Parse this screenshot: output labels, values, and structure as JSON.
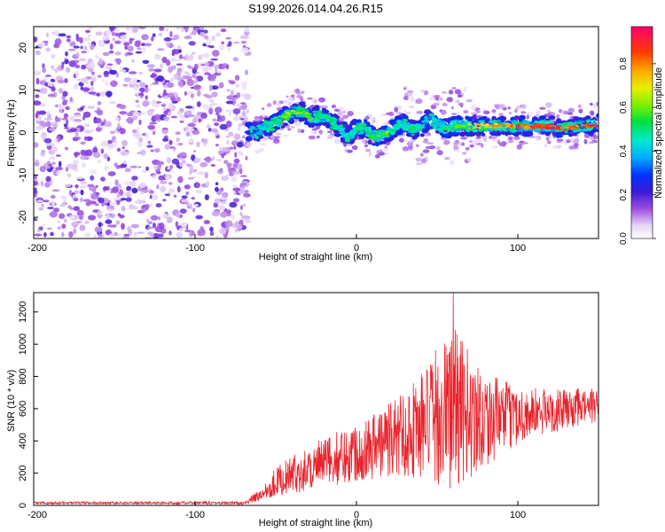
{
  "figure": {
    "title": "S199.2026.014.04.26.R15"
  },
  "chart_data": [
    {
      "type": "heatmap",
      "panel": "spectrogram",
      "title": "S199.2026.014.04.26.R15",
      "xlabel": "Height of straight line (km)",
      "ylabel": "Frequency (Hz)",
      "xlim": [
        -200,
        150
      ],
      "ylim": [
        -25,
        25
      ],
      "xticks": [
        -200,
        -100,
        0,
        100
      ],
      "xtick_labels": [
        "-200",
        "-100",
        "0",
        "100"
      ],
      "yticks": [
        -20,
        -10,
        0,
        10,
        20
      ],
      "ytick_labels": [
        "-20",
        "-10",
        "0",
        "10",
        "20"
      ],
      "colorbar": {
        "label": "Normalized spectral amplitude",
        "range": [
          0,
          0.97
        ],
        "ticks": [
          0,
          0.2,
          0.4,
          0.6,
          0.8
        ],
        "tick_labels": [
          "0.0",
          "0.2",
          "0.4",
          "0.6",
          "0.8"
        ]
      },
      "noise_region_x": [
        -200,
        -70
      ],
      "signal_ridge": [
        {
          "x": -70,
          "y": 0.5,
          "a": 0.35
        },
        {
          "x": -62,
          "y": 0.0,
          "a": 0.35
        },
        {
          "x": -55,
          "y": 1.5,
          "a": 0.45
        },
        {
          "x": -48,
          "y": 2.5,
          "a": 0.55
        },
        {
          "x": -42,
          "y": 4.5,
          "a": 0.65
        },
        {
          "x": -35,
          "y": 5.0,
          "a": 0.6
        },
        {
          "x": -28,
          "y": 3.5,
          "a": 0.55
        },
        {
          "x": -22,
          "y": 4.0,
          "a": 0.5
        },
        {
          "x": -15,
          "y": 2.5,
          "a": 0.55
        },
        {
          "x": -10,
          "y": 1.0,
          "a": 0.45
        },
        {
          "x": -5,
          "y": -1.0,
          "a": 0.5
        },
        {
          "x": 0,
          "y": 1.0,
          "a": 0.45
        },
        {
          "x": 5,
          "y": 1.0,
          "a": 0.5
        },
        {
          "x": 10,
          "y": -1.0,
          "a": 0.55
        },
        {
          "x": 15,
          "y": -0.5,
          "a": 0.55
        },
        {
          "x": 20,
          "y": 0.0,
          "a": 0.6
        },
        {
          "x": 25,
          "y": 1.5,
          "a": 0.5
        },
        {
          "x": 30,
          "y": 2.0,
          "a": 0.45
        },
        {
          "x": 35,
          "y": 0.5,
          "a": 0.5
        },
        {
          "x": 40,
          "y": 1.0,
          "a": 0.45
        },
        {
          "x": 45,
          "y": 3.5,
          "a": 0.4
        },
        {
          "x": 50,
          "y": 2.0,
          "a": 0.45
        },
        {
          "x": 55,
          "y": 1.0,
          "a": 0.5
        },
        {
          "x": 60,
          "y": 1.5,
          "a": 0.55
        },
        {
          "x": 65,
          "y": 1.5,
          "a": 0.6
        },
        {
          "x": 70,
          "y": 1.5,
          "a": 0.7
        },
        {
          "x": 80,
          "y": 1.5,
          "a": 0.75
        },
        {
          "x": 90,
          "y": 1.5,
          "a": 0.8
        },
        {
          "x": 100,
          "y": 1.5,
          "a": 0.82
        },
        {
          "x": 110,
          "y": 1.5,
          "a": 0.88
        },
        {
          "x": 120,
          "y": 1.5,
          "a": 0.9
        },
        {
          "x": 130,
          "y": 1.0,
          "a": 0.85
        },
        {
          "x": 140,
          "y": 1.5,
          "a": 0.88
        },
        {
          "x": 150,
          "y": 2.0,
          "a": 0.92
        }
      ]
    },
    {
      "type": "line",
      "panel": "snr",
      "xlabel": "Height of straight line (km)",
      "ylabel": "SNR (10 * v/v)",
      "xlim": [
        -200,
        150
      ],
      "ylim": [
        0,
        1320
      ],
      "xticks": [
        -200,
        -100,
        0,
        100
      ],
      "xtick_labels": [
        "-200",
        "-100",
        "0",
        "100"
      ],
      "yticks": [
        0,
        200,
        400,
        600,
        800,
        1000,
        1200
      ],
      "ytick_labels": [
        "0",
        "200",
        "400",
        "600",
        "800",
        "1000",
        "1200"
      ],
      "line_color": "#e8232b",
      "series": [
        {
          "name": "SNR",
          "envelope": [
            {
              "x": -200,
              "mean": 15,
              "amp": 8
            },
            {
              "x": -120,
              "mean": 15,
              "amp": 8
            },
            {
              "x": -70,
              "mean": 15,
              "amp": 10
            },
            {
              "x": -60,
              "mean": 60,
              "amp": 40
            },
            {
              "x": -50,
              "mean": 150,
              "amp": 90
            },
            {
              "x": -30,
              "mean": 230,
              "amp": 140
            },
            {
              "x": -10,
              "mean": 300,
              "amp": 170
            },
            {
              "x": 10,
              "mean": 370,
              "amp": 210
            },
            {
              "x": 30,
              "mean": 450,
              "amp": 280
            },
            {
              "x": 45,
              "mean": 520,
              "amp": 380
            },
            {
              "x": 55,
              "mean": 580,
              "amp": 480
            },
            {
              "x": 60,
              "mean": 600,
              "amp": 520
            },
            {
              "x": 70,
              "mean": 560,
              "amp": 400
            },
            {
              "x": 85,
              "mean": 540,
              "amp": 260
            },
            {
              "x": 100,
              "mean": 560,
              "amp": 180
            },
            {
              "x": 125,
              "mean": 590,
              "amp": 130
            },
            {
              "x": 150,
              "mean": 620,
              "amp": 110
            }
          ],
          "peak": {
            "x": 60,
            "y": 1320
          }
        }
      ]
    }
  ]
}
